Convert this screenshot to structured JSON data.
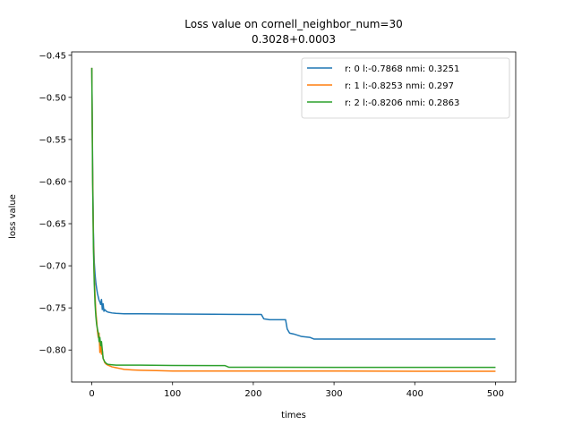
{
  "chart_data": {
    "type": "line",
    "title": "Loss value on cornell_neighbor_num=30",
    "subtitle": "0.3028+0.0003",
    "xlabel": "times",
    "ylabel": "loss value",
    "xlim": [
      -25,
      525
    ],
    "ylim": [
      -0.838,
      -0.446
    ],
    "xticks": [
      0,
      100,
      200,
      300,
      400,
      500
    ],
    "yticks": [
      -0.45,
      -0.5,
      -0.55,
      -0.6,
      -0.65,
      -0.7,
      -0.75,
      -0.8
    ],
    "ytick_labels": [
      "−0.45",
      "−0.50",
      "−0.55",
      "−0.60",
      "−0.65",
      "−0.70",
      "−0.75",
      "−0.80"
    ],
    "grid": false,
    "legend": "top-right",
    "series": [
      {
        "name": "r: 0 l:-0.7868 nmi: 0.3251",
        "color": "#1f77b4",
        "x": [
          0,
          1,
          2,
          3,
          4,
          5,
          6,
          7,
          8,
          9,
          10,
          11,
          12,
          13,
          14,
          15,
          16,
          18,
          20,
          25,
          30,
          40,
          60,
          100,
          150,
          200,
          210,
          213,
          220,
          240,
          242,
          245,
          250,
          260,
          270,
          275,
          300,
          400,
          500
        ],
        "y": [
          -0.465,
          -0.58,
          -0.66,
          -0.695,
          -0.71,
          -0.72,
          -0.727,
          -0.733,
          -0.737,
          -0.741,
          -0.743,
          -0.746,
          -0.74,
          -0.752,
          -0.745,
          -0.754,
          -0.752,
          -0.754,
          -0.755,
          -0.756,
          -0.7565,
          -0.757,
          -0.757,
          -0.7572,
          -0.7575,
          -0.7578,
          -0.7578,
          -0.763,
          -0.764,
          -0.764,
          -0.775,
          -0.78,
          -0.781,
          -0.784,
          -0.785,
          -0.787,
          -0.787,
          -0.787,
          -0.787
        ]
      },
      {
        "name": "r: 1 l:-0.8253 nmi: 0.297",
        "color": "#ff7f0e",
        "x": [
          0,
          1,
          2,
          3,
          4,
          5,
          6,
          7,
          8,
          9,
          10,
          11,
          12,
          13,
          14,
          15,
          16,
          18,
          20,
          25,
          30,
          35,
          40,
          50,
          60,
          80,
          100,
          200,
          300,
          400,
          500
        ],
        "y": [
          -0.465,
          -0.59,
          -0.67,
          -0.71,
          -0.735,
          -0.755,
          -0.765,
          -0.778,
          -0.785,
          -0.78,
          -0.803,
          -0.79,
          -0.805,
          -0.8,
          -0.81,
          -0.812,
          -0.815,
          -0.817,
          -0.818,
          -0.82,
          -0.821,
          -0.822,
          -0.823,
          -0.8236,
          -0.824,
          -0.8245,
          -0.825,
          -0.825,
          -0.825,
          -0.8253,
          -0.8253
        ]
      },
      {
        "name": "r: 2 l:-0.8206 nmi: 0.2863",
        "color": "#2ca02c",
        "x": [
          0,
          1,
          2,
          3,
          4,
          5,
          6,
          7,
          8,
          9,
          10,
          11,
          12,
          13,
          14,
          15,
          16,
          18,
          20,
          25,
          30,
          40,
          60,
          100,
          150,
          165,
          170,
          200,
          300,
          400,
          500
        ],
        "y": [
          -0.465,
          -0.6,
          -0.68,
          -0.72,
          -0.745,
          -0.76,
          -0.77,
          -0.775,
          -0.78,
          -0.79,
          -0.785,
          -0.795,
          -0.79,
          -0.8,
          -0.81,
          -0.812,
          -0.814,
          -0.816,
          -0.817,
          -0.8175,
          -0.818,
          -0.818,
          -0.818,
          -0.8183,
          -0.8185,
          -0.8185,
          -0.8205,
          -0.8205,
          -0.8206,
          -0.8206,
          -0.8206
        ]
      }
    ]
  }
}
